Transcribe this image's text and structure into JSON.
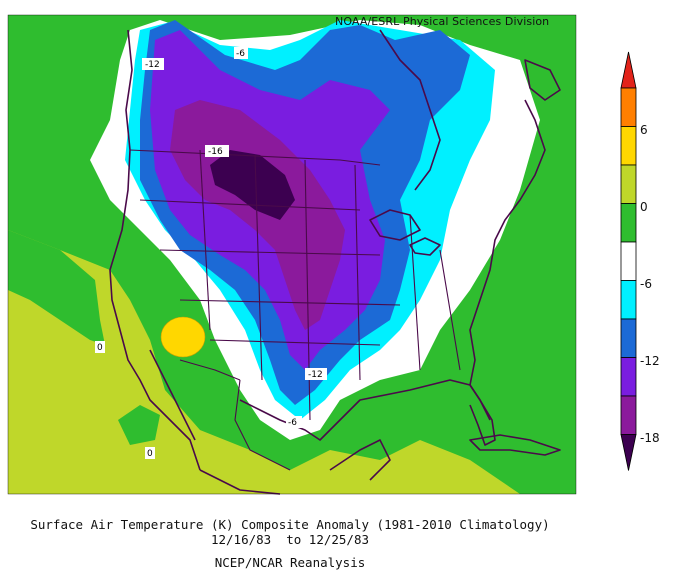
{
  "credit": "NOAA/ESRL Physical Sciences Division",
  "caption": {
    "line1": "Surface Air Temperature (K) Composite Anomaly (1981-2010 Climatology)",
    "line2": "12/16/83  to 12/25/83",
    "line3": "NCEP/NCAR Reanalysis"
  },
  "colorbar": {
    "tick_labels": [
      "6",
      "0",
      "-6",
      "-12",
      "-18"
    ],
    "colors": [
      "#e2231a",
      "#ff7f00",
      "#ffd700",
      "#bfd72a",
      "#2fbd2f",
      "#ffffff",
      "#00f0ff",
      "#1c6ad6",
      "#7a1de0",
      "#8b1a9c",
      "#3c0050"
    ]
  },
  "contour_labels": [
    {
      "id": "label-m12-north",
      "text": "-12"
    },
    {
      "id": "label-m6-north",
      "text": "-6"
    },
    {
      "id": "label-m16",
      "text": "-16"
    },
    {
      "id": "label-m12-south",
      "text": "-12"
    },
    {
      "id": "label-m6-south",
      "text": "-6"
    },
    {
      "id": "label-0-west",
      "text": "0"
    },
    {
      "id": "label-0-south",
      "text": "0"
    }
  ]
}
